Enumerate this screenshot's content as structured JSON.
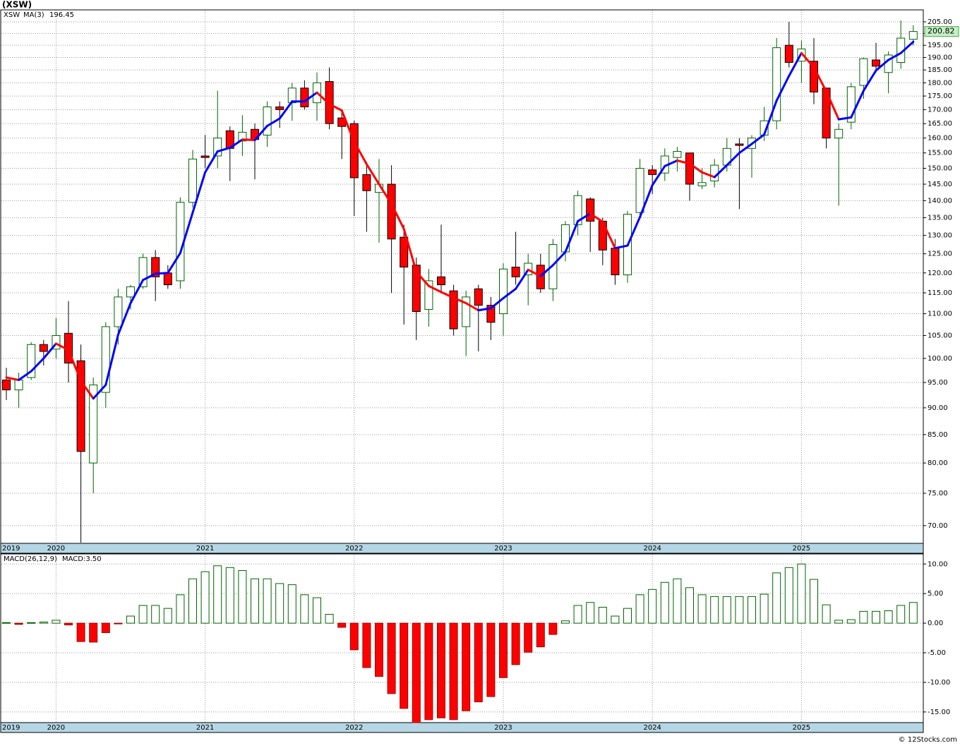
{
  "chart_data": [
    {
      "type": "candlestick",
      "title": "(XSW)",
      "name": "XSW",
      "log": true,
      "grid": true,
      "up_color": "#006400",
      "down_color": "#ff0000",
      "categories": [
        "2019",
        null,
        null,
        null,
        "2020",
        null,
        null,
        null,
        null,
        null,
        null,
        null,
        null,
        null,
        null,
        null,
        "2021",
        null,
        null,
        null,
        null,
        null,
        null,
        null,
        null,
        null,
        null,
        null,
        "2022",
        null,
        null,
        null,
        null,
        null,
        null,
        null,
        null,
        null,
        null,
        null,
        "2023",
        null,
        null,
        null,
        null,
        null,
        null,
        null,
        null,
        null,
        null,
        null,
        "2024",
        null,
        null,
        null,
        null,
        null,
        null,
        null,
        null,
        null,
        null,
        null,
        "2025",
        null,
        null,
        null,
        null,
        null,
        null,
        null,
        null,
        null
      ],
      "open": [
        95.5,
        93.5,
        96,
        103,
        102,
        105.5,
        99.5,
        80,
        93,
        107,
        114,
        116.5,
        124,
        120,
        118,
        139.5,
        154,
        154,
        162.5,
        159,
        163,
        161,
        171,
        172.5,
        178,
        172.5,
        180.5,
        167,
        165,
        148,
        142.5,
        145,
        129.5,
        122,
        111,
        119,
        115.5,
        107,
        116,
        112,
        110,
        121.5,
        119.5,
        122,
        116,
        125.5,
        133,
        140.5,
        134,
        126.5,
        119.5,
        136.5,
        149.5,
        148.5,
        153.5,
        155,
        144.5,
        146,
        151,
        158,
        156.5,
        161,
        166,
        195,
        188.5,
        188.5,
        178,
        160,
        165.5,
        179,
        189,
        184,
        188,
        197.5
      ],
      "high": [
        98,
        97,
        103.5,
        104,
        109,
        113,
        103,
        96,
        108,
        116,
        117,
        125,
        126,
        122,
        141,
        156,
        161,
        177,
        164,
        168,
        165,
        173,
        173,
        180,
        181,
        184,
        186,
        169,
        166,
        152,
        153,
        151,
        133,
        124,
        121,
        133,
        117,
        115.5,
        117,
        114,
        122.5,
        131,
        125,
        125,
        129,
        134,
        143,
        141,
        135,
        129,
        137,
        153,
        151,
        156.5,
        157,
        155,
        150,
        153,
        160,
        160,
        161,
        171,
        198,
        205,
        197,
        198,
        178,
        165,
        180,
        190,
        196,
        192.5,
        205.5,
        203.5
      ],
      "low": [
        91.5,
        90,
        95.5,
        98.5,
        100,
        95,
        67.5,
        75,
        90,
        103,
        111,
        116,
        113,
        116,
        116,
        138,
        150,
        150,
        146,
        154,
        146.5,
        157,
        163.5,
        166,
        170,
        166,
        163,
        153,
        135.5,
        131,
        128,
        115,
        107.5,
        104,
        107,
        115,
        105,
        100.5,
        101.5,
        104,
        105,
        117,
        112,
        115,
        113,
        123,
        130,
        125.5,
        122,
        117,
        117.5,
        135,
        142,
        146,
        149,
        140,
        143.5,
        144,
        149,
        137.5,
        147,
        159,
        163,
        186,
        180,
        172,
        156.5,
        138.5,
        163,
        174,
        184,
        176,
        185.5,
        195
      ],
      "close": [
        93.5,
        95.5,
        103,
        101.5,
        105,
        99,
        82,
        94.5,
        107,
        114,
        116.5,
        124,
        119,
        117,
        139.5,
        153,
        153.5,
        160,
        156.5,
        162,
        159.5,
        171,
        170,
        178,
        171,
        180,
        165,
        164,
        147,
        143,
        145,
        129,
        121.5,
        110.5,
        118,
        117,
        106.5,
        114,
        112,
        108,
        121,
        119,
        122.5,
        116,
        127.5,
        133,
        141.5,
        134,
        126,
        119.5,
        136,
        150,
        148,
        154,
        155.5,
        145,
        145.5,
        151,
        156.5,
        157.5,
        160,
        166,
        194,
        188,
        193.5,
        176.5,
        160,
        163,
        178.5,
        189.5,
        186.5,
        191,
        198,
        200.82
      ],
      "ma": {
        "name": "MA(3)",
        "up_color": "#0000ff",
        "down_color": "#ff0000",
        "values": [
          96,
          95.5,
          97.3,
          100,
          103.2,
          101.8,
          95.3,
          91.8,
          94.5,
          105.2,
          112.5,
          118.2,
          119.8,
          120,
          125.2,
          136.5,
          148.7,
          155.5,
          156.7,
          159.5,
          159.3,
          164.2,
          166.8,
          173,
          173,
          176.3,
          172,
          169.7,
          158.7,
          151.3,
          145,
          139,
          131.8,
          120.3,
          116.7,
          115.2,
          113.8,
          112.5,
          110.8,
          111.3,
          113.7,
          116,
          120.8,
          119.2,
          122,
          125.5,
          134,
          136.2,
          133.8,
          126.5,
          127.2,
          135.2,
          144.7,
          150.7,
          152.5,
          151.5,
          148.7,
          147.2,
          151,
          155,
          158,
          161.2,
          173.3,
          182.7,
          191.8,
          186,
          176.7,
          166.5,
          167.2,
          177,
          184.8,
          189,
          191.8,
          196.45
        ]
      },
      "ylim": [
        67.4,
        210.3
      ],
      "yticks": [
        {
          "value": 205,
          "label": "205.00"
        },
        {
          "value": 200,
          "label": "200.00"
        },
        {
          "value": 195,
          "label": "195.00"
        },
        {
          "value": 190,
          "label": "190.00"
        },
        {
          "value": 185,
          "label": "185.00"
        },
        {
          "value": 180,
          "label": "180.00"
        },
        {
          "value": 175,
          "label": "175.00"
        },
        {
          "value": 170,
          "label": "170.00"
        },
        {
          "value": 165,
          "label": "165.00"
        },
        {
          "value": 160,
          "label": "160.00"
        },
        {
          "value": 155,
          "label": "155.00"
        },
        {
          "value": 150,
          "label": "150.00"
        },
        {
          "value": 145,
          "label": "145.00"
        },
        {
          "value": 140,
          "label": "140.00"
        },
        {
          "value": 135,
          "label": "135.00"
        },
        {
          "value": 130,
          "label": "130.00"
        },
        {
          "value": 125,
          "label": "125.00"
        },
        {
          "value": 120,
          "label": "120.00"
        },
        {
          "value": 115,
          "label": "115.00"
        },
        {
          "value": 110,
          "label": "110.00"
        },
        {
          "value": 105,
          "label": "105.00"
        },
        {
          "value": 100,
          "label": "100.00"
        },
        {
          "value": 95,
          "label": "95.00"
        },
        {
          "value": 90,
          "label": "90.00"
        },
        {
          "value": 85,
          "label": "85.00"
        },
        {
          "value": 80,
          "label": "80.00"
        },
        {
          "value": 75,
          "label": "75.00"
        },
        {
          "value": 70,
          "label": "70.00"
        }
      ]
    },
    {
      "type": "bar",
      "name": "MACD(26,12,9)",
      "value_label": "MACD:3.50",
      "grid": true,
      "up_color": "#006400",
      "down_color": "#ff0000",
      "categories": [
        "2019",
        null,
        null,
        null,
        "2020",
        null,
        null,
        null,
        null,
        null,
        null,
        null,
        null,
        null,
        null,
        null,
        "2021",
        null,
        null,
        null,
        null,
        null,
        null,
        null,
        null,
        null,
        null,
        null,
        "2022",
        null,
        null,
        null,
        null,
        null,
        null,
        null,
        null,
        null,
        null,
        null,
        "2023",
        null,
        null,
        null,
        null,
        null,
        null,
        null,
        null,
        null,
        null,
        null,
        "2024",
        null,
        null,
        null,
        null,
        null,
        null,
        null,
        null,
        null,
        null,
        null,
        "2025",
        null,
        null,
        null,
        null,
        null,
        null,
        null,
        null,
        null
      ],
      "values": [
        0.1,
        -0.2,
        0.1,
        0.2,
        0.5,
        -0.3,
        -3.1,
        -3.2,
        -1.6,
        -0.1,
        1.2,
        3,
        3,
        2.5,
        4.8,
        7.5,
        8.7,
        9.7,
        9.4,
        8.9,
        7.5,
        7.5,
        6.7,
        6.5,
        4.8,
        4.3,
        1.5,
        -0.7,
        -4.5,
        -7.5,
        -9,
        -11.9,
        -14.4,
        -16.8,
        -16.3,
        -16,
        -16.3,
        -14.8,
        -13.3,
        -12.4,
        -9.2,
        -7,
        -4.9,
        -4,
        -1.9,
        0.4,
        3,
        3.5,
        2.7,
        1.2,
        2.5,
        4.8,
        5.7,
        6.9,
        7.5,
        6,
        4.8,
        4.5,
        4.5,
        4.5,
        4.5,
        4.9,
        8.5,
        9.4,
        10,
        7.4,
        3.1,
        0.5,
        0.6,
        2,
        2,
        2.1,
        3,
        3.5
      ],
      "ylim": [
        -16.8,
        11.7
      ],
      "yticks": [
        {
          "value": 10,
          "label": "10.00"
        },
        {
          "value": 5,
          "label": "5.00"
        },
        {
          "value": 0,
          "label": "0.00"
        },
        {
          "value": -5,
          "label": "-5.00"
        },
        {
          "value": -10,
          "label": "-10.00"
        },
        {
          "value": -15,
          "label": "-15.00"
        }
      ]
    }
  ],
  "footer": "© 12Stocks.com"
}
